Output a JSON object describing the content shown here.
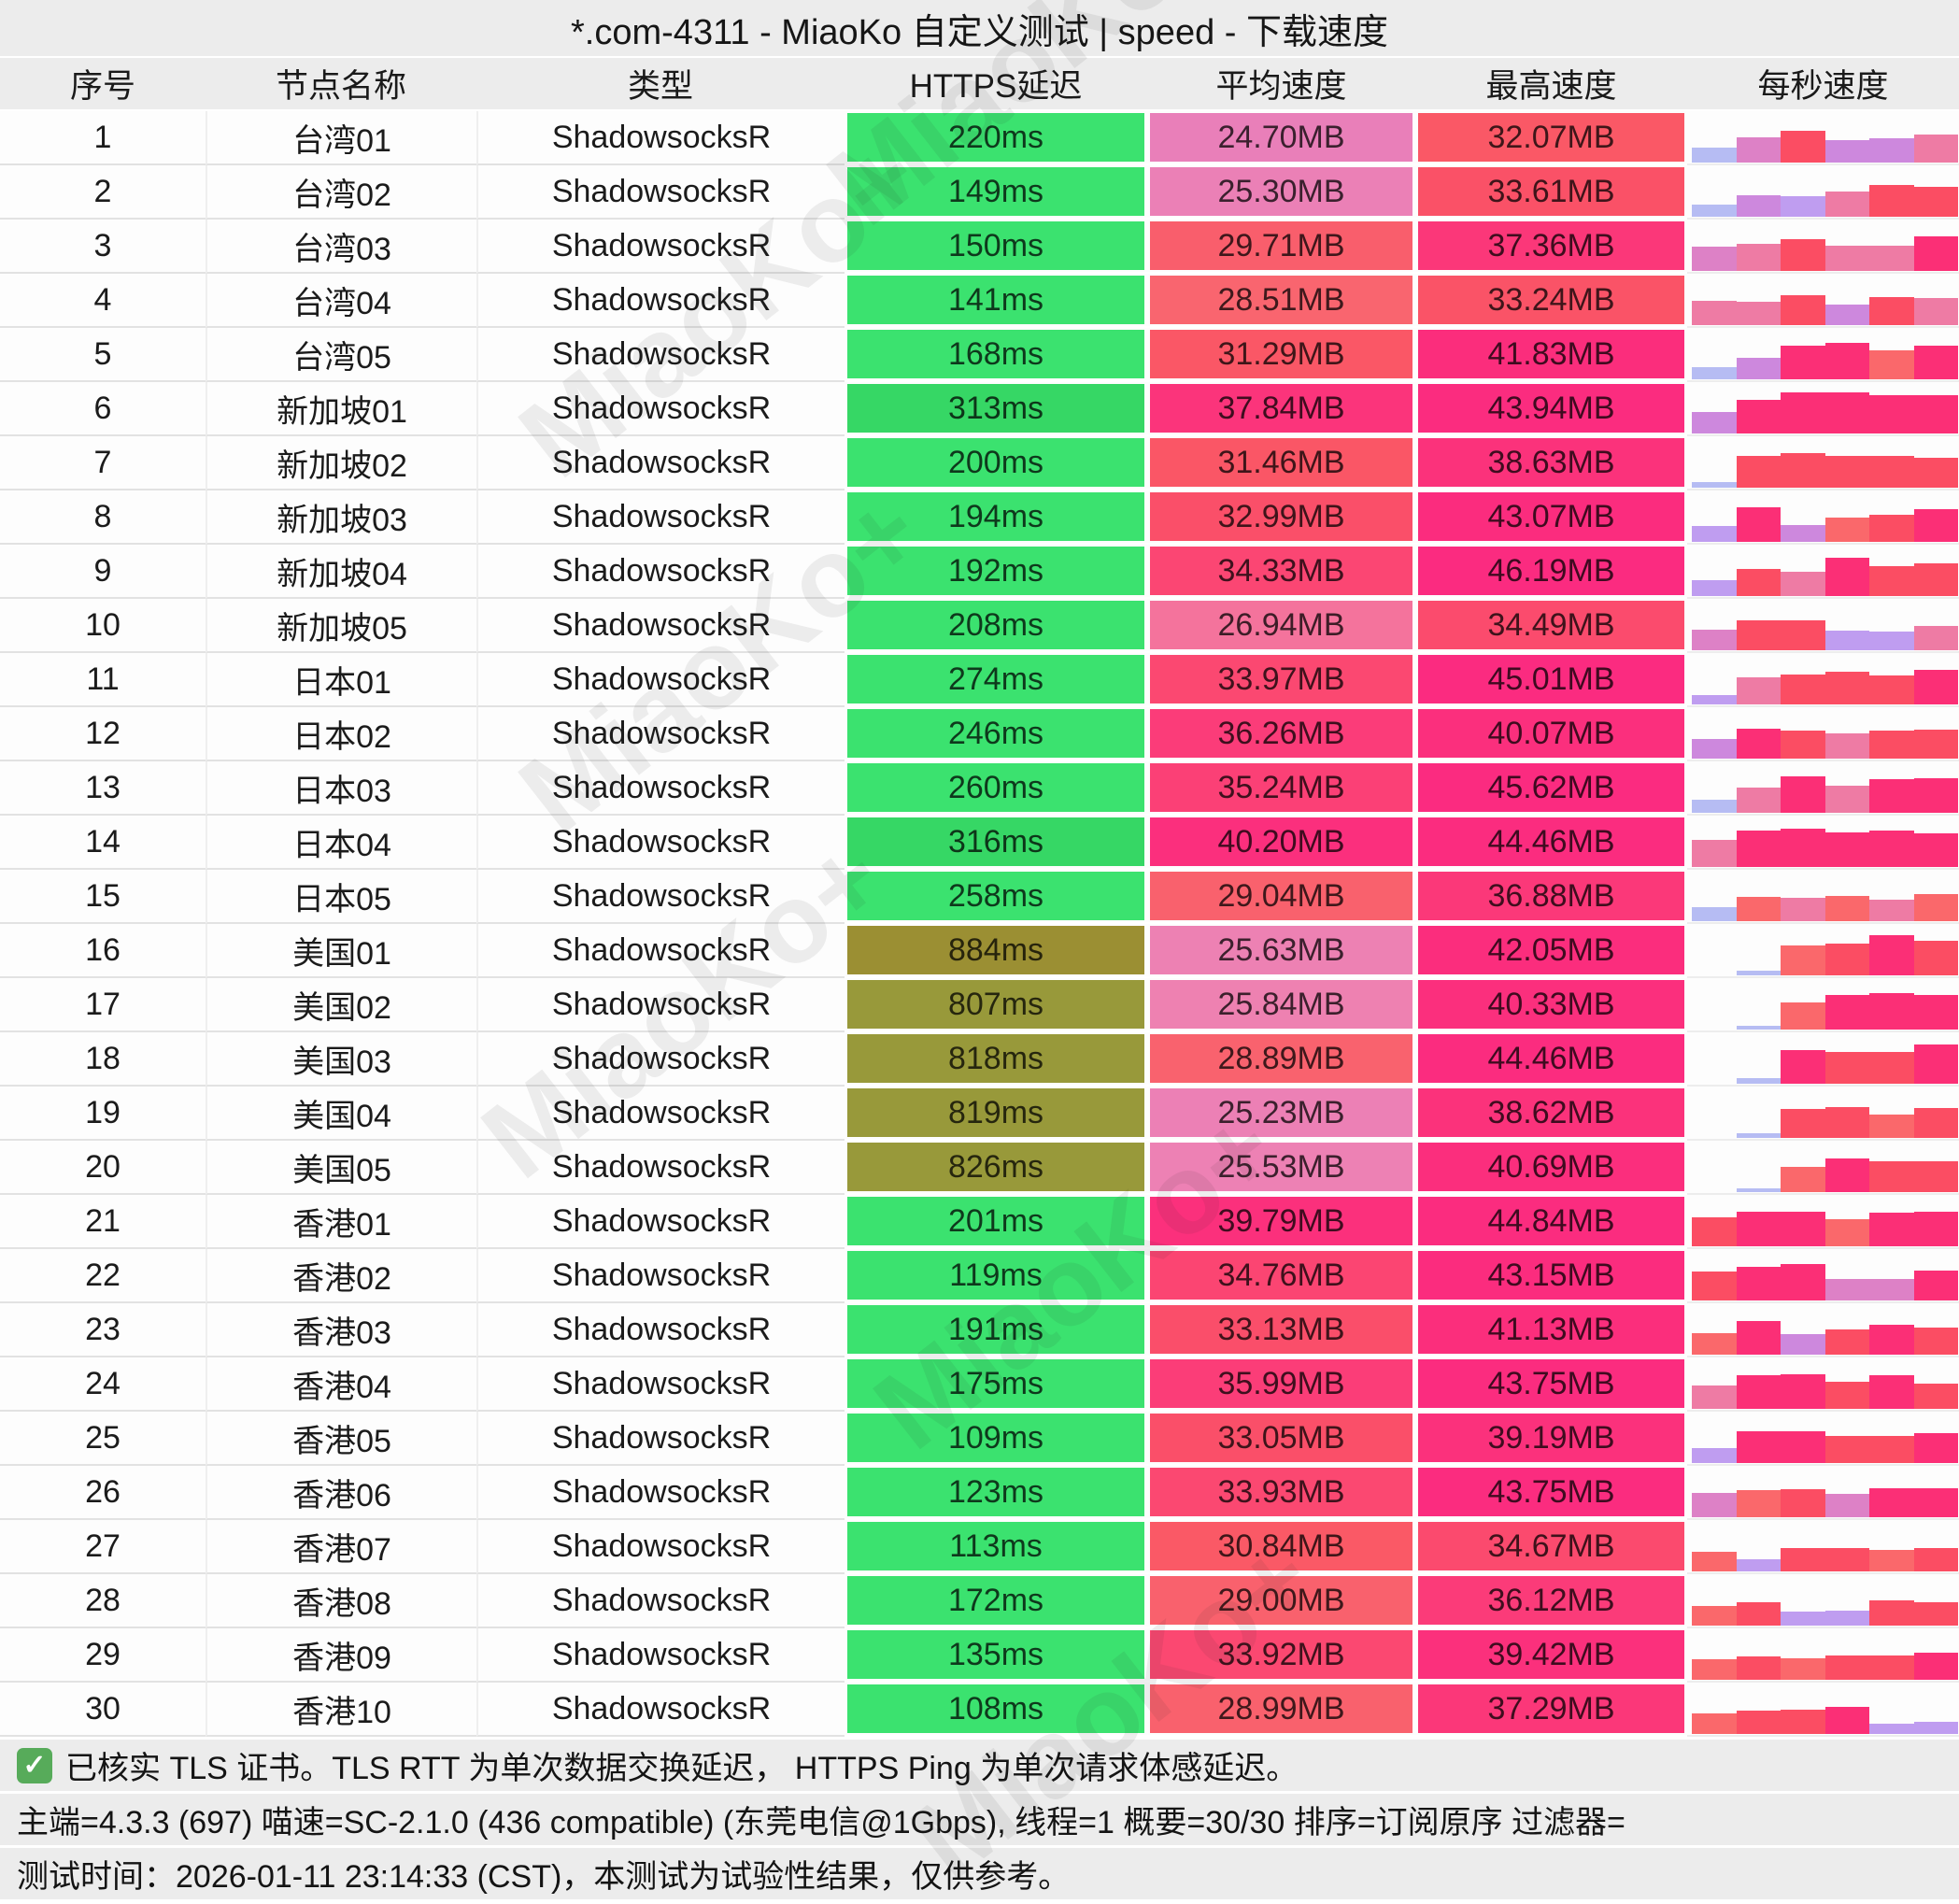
{
  "title": "*.com-4311 - MiaoKo 自定义测试 | speed - 下载速度",
  "watermark": "MiaoKo+",
  "columns": [
    "序号",
    "节点名称",
    "类型",
    "HTTPS延迟",
    "平均速度",
    "最高速度",
    "每秒速度"
  ],
  "rows": [
    {
      "no": "1",
      "name": "台湾01",
      "type": "ShadowsocksR",
      "lat": "220ms",
      "lat_bg": "#3be26f",
      "avg": "24.70MB",
      "avg_bg": "#e97fb9",
      "max": "32.07MB",
      "max_bg": "#fa5866",
      "bars": [
        [
          30,
          "#b6bcf3"
        ],
        [
          52,
          "#dd81c6"
        ],
        [
          66,
          "#fb4d63"
        ],
        [
          47,
          "#cd88dd"
        ],
        [
          50,
          "#cd88dd"
        ],
        [
          58,
          "#ee7ba4"
        ]
      ]
    },
    {
      "no": "2",
      "name": "台湾02",
      "type": "ShadowsocksR",
      "lat": "149ms",
      "lat_bg": "#3be26f",
      "avg": "25.30MB",
      "avg_bg": "#eb80b6",
      "max": "33.61MB",
      "max_bg": "#fa5167",
      "bars": [
        [
          25,
          "#b6bcf3"
        ],
        [
          45,
          "#cd88dd"
        ],
        [
          42,
          "#bf9df0"
        ],
        [
          52,
          "#ee7ba4"
        ],
        [
          65,
          "#fb4d63"
        ],
        [
          62,
          "#fb4d63"
        ]
      ]
    },
    {
      "no": "3",
      "name": "台湾03",
      "type": "ShadowsocksR",
      "lat": "150ms",
      "lat_bg": "#3be26f",
      "avg": "29.71MB",
      "avg_bg": "#f95e6c",
      "max": "37.36MB",
      "max_bg": "#fb3779",
      "bars": [
        [
          50,
          "#dd81c6"
        ],
        [
          55,
          "#ee7ba4"
        ],
        [
          66,
          "#fb4d63"
        ],
        [
          52,
          "#ee7ba4"
        ],
        [
          52,
          "#ee7ba4"
        ],
        [
          72,
          "#fb2f76"
        ]
      ]
    },
    {
      "no": "4",
      "name": "台湾04",
      "type": "ShadowsocksR",
      "lat": "141ms",
      "lat_bg": "#3be26f",
      "avg": "28.51MB",
      "avg_bg": "#f9656f",
      "max": "33.24MB",
      "max_bg": "#fa5367",
      "bars": [
        [
          50,
          "#ee7ba4"
        ],
        [
          48,
          "#ee7ba4"
        ],
        [
          62,
          "#fb4d63"
        ],
        [
          42,
          "#cd88dd"
        ],
        [
          58,
          "#fb4d63"
        ],
        [
          55,
          "#ee7ba4"
        ]
      ]
    },
    {
      "no": "5",
      "name": "台湾05",
      "type": "ShadowsocksR",
      "lat": "168ms",
      "lat_bg": "#3be26f",
      "avg": "31.29MB",
      "avg_bg": "#fa5766",
      "max": "41.83MB",
      "max_bg": "#fb2d7c",
      "bars": [
        [
          25,
          "#b6bcf3"
        ],
        [
          45,
          "#cd88dd"
        ],
        [
          70,
          "#fb2f76"
        ],
        [
          75,
          "#fb2f76"
        ],
        [
          60,
          "#fa686b"
        ],
        [
          70,
          "#fb2f76"
        ]
      ]
    },
    {
      "no": "6",
      "name": "新加坡01",
      "type": "ShadowsocksR",
      "lat": "313ms",
      "lat_bg": "#36d765",
      "avg": "37.84MB",
      "avg_bg": "#fb347b",
      "max": "43.94MB",
      "max_bg": "#fb2c7f",
      "bars": [
        [
          45,
          "#cd88dd"
        ],
        [
          70,
          "#fb2f76"
        ],
        [
          85,
          "#fb2f76"
        ],
        [
          85,
          "#fb2f76"
        ],
        [
          78,
          "#fb2f76"
        ],
        [
          78,
          "#fb2f76"
        ]
      ]
    },
    {
      "no": "7",
      "name": "新加坡02",
      "type": "ShadowsocksR",
      "lat": "200ms",
      "lat_bg": "#3be26f",
      "avg": "31.46MB",
      "avg_bg": "#fa5666",
      "max": "38.63MB",
      "max_bg": "#fb327b",
      "bars": [
        [
          12,
          "#b6bcf3"
        ],
        [
          65,
          "#fb4d63"
        ],
        [
          72,
          "#fb4d63"
        ],
        [
          65,
          "#fb4d63"
        ],
        [
          65,
          "#fb4d63"
        ],
        [
          62,
          "#fb4d63"
        ]
      ]
    },
    {
      "no": "8",
      "name": "新加坡03",
      "type": "ShadowsocksR",
      "lat": "194ms",
      "lat_bg": "#3be26f",
      "avg": "32.99MB",
      "avg_bg": "#fa4f69",
      "max": "43.07MB",
      "max_bg": "#fb2c7e",
      "bars": [
        [
          32,
          "#bf9df0"
        ],
        [
          72,
          "#fb2f76"
        ],
        [
          35,
          "#cd88dd"
        ],
        [
          50,
          "#fa686b"
        ],
        [
          55,
          "#fb4d63"
        ],
        [
          68,
          "#fb2f76"
        ]
      ]
    },
    {
      "no": "9",
      "name": "新加坡04",
      "type": "ShadowsocksR",
      "lat": "192ms",
      "lat_bg": "#3be26f",
      "avg": "34.33MB",
      "avg_bg": "#fb4673",
      "max": "46.19MB",
      "max_bg": "#fb2b80",
      "bars": [
        [
          32,
          "#bf9df0"
        ],
        [
          55,
          "#fb4d63"
        ],
        [
          50,
          "#ee7ba4"
        ],
        [
          78,
          "#fb2f76"
        ],
        [
          62,
          "#fb4d63"
        ],
        [
          68,
          "#fb4d63"
        ]
      ]
    },
    {
      "no": "10",
      "name": "新加坡05",
      "type": "ShadowsocksR",
      "lat": "208ms",
      "lat_bg": "#3be26f",
      "avg": "26.94MB",
      "avg_bg": "#f4739c",
      "max": "34.49MB",
      "max_bg": "#fb4b6d",
      "bars": [
        [
          42,
          "#dd81c6"
        ],
        [
          62,
          "#fb4d63"
        ],
        [
          62,
          "#fb4d63"
        ],
        [
          40,
          "#bf9df0"
        ],
        [
          38,
          "#bf9df0"
        ],
        [
          50,
          "#ee7ba4"
        ]
      ]
    },
    {
      "no": "11",
      "name": "日本01",
      "type": "ShadowsocksR",
      "lat": "274ms",
      "lat_bg": "#3be26f",
      "avg": "33.97MB",
      "avg_bg": "#fb4871",
      "max": "45.01MB",
      "max_bg": "#fb2b80",
      "bars": [
        [
          20,
          "#bf9df0"
        ],
        [
          55,
          "#ee7ba4"
        ],
        [
          62,
          "#fb4d63"
        ],
        [
          68,
          "#fb4d63"
        ],
        [
          60,
          "#fb4d63"
        ],
        [
          72,
          "#fb2f76"
        ]
      ]
    },
    {
      "no": "12",
      "name": "日本02",
      "type": "ShadowsocksR",
      "lat": "246ms",
      "lat_bg": "#3be26f",
      "avg": "36.26MB",
      "avg_bg": "#fb3c79",
      "max": "40.07MB",
      "max_bg": "#fb2f7d",
      "bars": [
        [
          40,
          "#cd88dd"
        ],
        [
          62,
          "#fb2f76"
        ],
        [
          58,
          "#fb4d63"
        ],
        [
          52,
          "#ee7ba4"
        ],
        [
          58,
          "#fb4d63"
        ],
        [
          60,
          "#fb4d63"
        ]
      ]
    },
    {
      "no": "13",
      "name": "日本03",
      "type": "ShadowsocksR",
      "lat": "260ms",
      "lat_bg": "#3be26f",
      "avg": "35.24MB",
      "avg_bg": "#fb4076",
      "max": "45.62MB",
      "max_bg": "#fb2b80",
      "bars": [
        [
          26,
          "#b6bcf3"
        ],
        [
          52,
          "#ee7ba4"
        ],
        [
          75,
          "#fb2f76"
        ],
        [
          55,
          "#ee7ba4"
        ],
        [
          70,
          "#fb2f76"
        ],
        [
          72,
          "#fb2f76"
        ]
      ]
    },
    {
      "no": "14",
      "name": "日本04",
      "type": "ShadowsocksR",
      "lat": "316ms",
      "lat_bg": "#36d765",
      "avg": "40.20MB",
      "avg_bg": "#fb2f7d",
      "max": "44.46MB",
      "max_bg": "#fb2c7f",
      "bars": [
        [
          55,
          "#ee7ba4"
        ],
        [
          75,
          "#fb2f76"
        ],
        [
          78,
          "#fb2f76"
        ],
        [
          72,
          "#fb2f76"
        ],
        [
          75,
          "#fb2f76"
        ],
        [
          70,
          "#fb2f76"
        ]
      ]
    },
    {
      "no": "15",
      "name": "日本05",
      "type": "ShadowsocksR",
      "lat": "258ms",
      "lat_bg": "#3be26f",
      "avg": "29.04MB",
      "avg_bg": "#f9616d",
      "max": "36.88MB",
      "max_bg": "#fb3879",
      "bars": [
        [
          28,
          "#b6bcf3"
        ],
        [
          50,
          "#fa686b"
        ],
        [
          48,
          "#ee7ba4"
        ],
        [
          52,
          "#fa686b"
        ],
        [
          45,
          "#ee7ba4"
        ],
        [
          55,
          "#fa686b"
        ]
      ]
    },
    {
      "no": "16",
      "name": "美国01",
      "type": "ShadowsocksR",
      "lat": "884ms",
      "lat_bg": "#9b8f33",
      "avg": "25.63MB",
      "avg_bg": "#ed81b3",
      "max": "42.05MB",
      "max_bg": "#fb2d7d",
      "bars": [
        [
          0,
          "none"
        ],
        [
          10,
          "#b6bcf3"
        ],
        [
          62,
          "#fa686b"
        ],
        [
          66,
          "#fb4d63"
        ],
        [
          82,
          "#fb2f76"
        ],
        [
          72,
          "#fb4d63"
        ]
      ]
    },
    {
      "no": "17",
      "name": "美国02",
      "type": "ShadowsocksR",
      "lat": "807ms",
      "lat_bg": "#98993a",
      "avg": "25.84MB",
      "avg_bg": "#ee81b1",
      "max": "40.33MB",
      "max_bg": "#fb2f7d",
      "bars": [
        [
          0,
          "none"
        ],
        [
          8,
          "#b6bcf3"
        ],
        [
          55,
          "#fa686b"
        ],
        [
          72,
          "#fb2f76"
        ],
        [
          75,
          "#fb2f76"
        ],
        [
          72,
          "#fb2f76"
        ]
      ]
    },
    {
      "no": "18",
      "name": "美国03",
      "type": "ShadowsocksR",
      "lat": "818ms",
      "lat_bg": "#98993a",
      "avg": "28.89MB",
      "avg_bg": "#f9626e",
      "max": "44.46MB",
      "max_bg": "#fb2c7f",
      "bars": [
        [
          0,
          "none"
        ],
        [
          12,
          "#b6bcf3"
        ],
        [
          70,
          "#fb2f76"
        ],
        [
          66,
          "#fb4d63"
        ],
        [
          66,
          "#fb4d63"
        ],
        [
          80,
          "#fb2f76"
        ]
      ]
    },
    {
      "no": "19",
      "name": "美国04",
      "type": "ShadowsocksR",
      "lat": "819ms",
      "lat_bg": "#98993a",
      "avg": "25.23MB",
      "avg_bg": "#ec80b5",
      "max": "38.62MB",
      "max_bg": "#fb327b",
      "bars": [
        [
          0,
          "none"
        ],
        [
          10,
          "#b6bcf3"
        ],
        [
          60,
          "#fb4d63"
        ],
        [
          64,
          "#fb4d63"
        ],
        [
          48,
          "#fa686b"
        ],
        [
          62,
          "#fb4d63"
        ]
      ]
    },
    {
      "no": "20",
      "name": "美国05",
      "type": "ShadowsocksR",
      "lat": "826ms",
      "lat_bg": "#98993a",
      "avg": "25.53MB",
      "avg_bg": "#ed81b4",
      "max": "40.69MB",
      "max_bg": "#fb2e7d",
      "bars": [
        [
          0,
          "none"
        ],
        [
          8,
          "#b6bcf3"
        ],
        [
          52,
          "#fa686b"
        ],
        [
          70,
          "#fb2f76"
        ],
        [
          64,
          "#fb4d63"
        ],
        [
          64,
          "#fb4d63"
        ]
      ]
    },
    {
      "no": "21",
      "name": "香港01",
      "type": "ShadowsocksR",
      "lat": "201ms",
      "lat_bg": "#3be26f",
      "avg": "39.79MB",
      "avg_bg": "#fb307c",
      "max": "44.84MB",
      "max_bg": "#fb2c7f",
      "bars": [
        [
          60,
          "#fb4d63"
        ],
        [
          72,
          "#fb2f76"
        ],
        [
          72,
          "#fb2f76"
        ],
        [
          55,
          "#fa686b"
        ],
        [
          70,
          "#fb2f76"
        ],
        [
          72,
          "#fb2f76"
        ]
      ]
    },
    {
      "no": "22",
      "name": "香港02",
      "type": "ShadowsocksR",
      "lat": "119ms",
      "lat_bg": "#3be26f",
      "avg": "34.76MB",
      "avg_bg": "#fb4572",
      "max": "43.15MB",
      "max_bg": "#fb2c7e",
      "bars": [
        [
          60,
          "#fb4d63"
        ],
        [
          70,
          "#fb2f76"
        ],
        [
          75,
          "#fb2f76"
        ],
        [
          45,
          "#dd81c6"
        ],
        [
          45,
          "#dd81c6"
        ],
        [
          62,
          "#fb2f76"
        ]
      ]
    },
    {
      "no": "23",
      "name": "香港03",
      "type": "ShadowsocksR",
      "lat": "191ms",
      "lat_bg": "#3be26f",
      "avg": "33.13MB",
      "avg_bg": "#fa4e6a",
      "max": "41.13MB",
      "max_bg": "#fb2e7c",
      "bars": [
        [
          45,
          "#fa686b"
        ],
        [
          70,
          "#fb2f76"
        ],
        [
          42,
          "#cd88dd"
        ],
        [
          52,
          "#fb4d63"
        ],
        [
          62,
          "#fb2f76"
        ],
        [
          55,
          "#fb4d63"
        ]
      ]
    },
    {
      "no": "24",
      "name": "香港04",
      "type": "ShadowsocksR",
      "lat": "175ms",
      "lat_bg": "#3be26f",
      "avg": "35.99MB",
      "avg_bg": "#fb3d78",
      "max": "43.75MB",
      "max_bg": "#fb2c7f",
      "bars": [
        [
          48,
          "#ee7ba4"
        ],
        [
          70,
          "#fb2f76"
        ],
        [
          72,
          "#fb2f76"
        ],
        [
          55,
          "#fb4d63"
        ],
        [
          70,
          "#fb2f76"
        ],
        [
          52,
          "#fb4d63"
        ]
      ]
    },
    {
      "no": "25",
      "name": "香港05",
      "type": "ShadowsocksR",
      "lat": "109ms",
      "lat_bg": "#3be26f",
      "avg": "33.05MB",
      "avg_bg": "#fa4f69",
      "max": "39.19MB",
      "max_bg": "#fb317c",
      "bars": [
        [
          30,
          "#bf9df0"
        ],
        [
          65,
          "#fb2f76"
        ],
        [
          65,
          "#fb2f76"
        ],
        [
          55,
          "#fb4d63"
        ],
        [
          55,
          "#fb4d63"
        ],
        [
          62,
          "#fb2f76"
        ]
      ]
    },
    {
      "no": "26",
      "name": "香港06",
      "type": "ShadowsocksR",
      "lat": "123ms",
      "lat_bg": "#3be26f",
      "avg": "33.93MB",
      "avg_bg": "#fb4871",
      "max": "43.75MB",
      "max_bg": "#fb2c7f",
      "bars": [
        [
          50,
          "#dd81c6"
        ],
        [
          55,
          "#fa686b"
        ],
        [
          58,
          "#fb4d63"
        ],
        [
          48,
          "#dd81c6"
        ],
        [
          60,
          "#fb2f76"
        ],
        [
          60,
          "#fb2f76"
        ]
      ]
    },
    {
      "no": "27",
      "name": "香港07",
      "type": "ShadowsocksR",
      "lat": "113ms",
      "lat_bg": "#3be26f",
      "avg": "30.84MB",
      "avg_bg": "#fa5966",
      "max": "34.67MB",
      "max_bg": "#fb4a6e",
      "bars": [
        [
          40,
          "#fa686b"
        ],
        [
          25,
          "#bf9df0"
        ],
        [
          48,
          "#fb4d63"
        ],
        [
          48,
          "#fb4d63"
        ],
        [
          45,
          "#fa686b"
        ],
        [
          48,
          "#fb4d63"
        ]
      ]
    },
    {
      "no": "28",
      "name": "香港08",
      "type": "ShadowsocksR",
      "lat": "172ms",
      "lat_bg": "#3be26f",
      "avg": "29.00MB",
      "avg_bg": "#f9616d",
      "max": "36.12MB",
      "max_bg": "#fb3b79",
      "bars": [
        [
          40,
          "#fa686b"
        ],
        [
          48,
          "#fb4d63"
        ],
        [
          28,
          "#bf9df0"
        ],
        [
          30,
          "#bf9df0"
        ],
        [
          52,
          "#fb4d63"
        ],
        [
          48,
          "#fb4d63"
        ]
      ]
    },
    {
      "no": "29",
      "name": "香港09",
      "type": "ShadowsocksR",
      "lat": "135ms",
      "lat_bg": "#3be26f",
      "avg": "33.92MB",
      "avg_bg": "#fb4871",
      "max": "39.42MB",
      "max_bg": "#fb307c",
      "bars": [
        [
          42,
          "#fa686b"
        ],
        [
          48,
          "#fb4d63"
        ],
        [
          45,
          "#fa686b"
        ],
        [
          50,
          "#fb4d63"
        ],
        [
          50,
          "#fb4d63"
        ],
        [
          55,
          "#fb2f76"
        ]
      ]
    },
    {
      "no": "30",
      "name": "香港10",
      "type": "ShadowsocksR",
      "lat": "108ms",
      "lat_bg": "#3be26f",
      "avg": "28.99MB",
      "avg_bg": "#f9616d",
      "max": "37.29MB",
      "max_bg": "#fb3779",
      "bars": [
        [
          42,
          "#fa686b"
        ],
        [
          48,
          "#fb4d63"
        ],
        [
          50,
          "#fb4d63"
        ],
        [
          55,
          "#fb2f76"
        ],
        [
          22,
          "#bf9df0"
        ],
        [
          25,
          "#bf9df0"
        ]
      ]
    }
  ],
  "footer": {
    "check_glyph": "✓",
    "line1": "已核实 TLS 证书。TLS RTT 为单次数据交换延迟， HTTPS Ping 为单次请求体感延迟。",
    "line2": "主端=4.3.3 (697) 喵速=SC-2.1.0 (436 compatible) (东莞电信@1Gbps), 线程=1 概要=30/30 排序=订阅原序 过滤器=",
    "line3": "测试时间：2026-01-11 23:14:33 (CST)，本测试为试验性结果，仅供参考。"
  },
  "status_colors": {
    "latency_good": "#3be26f",
    "latency_mid": "#36d765",
    "latency_high": "#98993a",
    "speed_slow": "#b6bcf3",
    "speed_fast": "#fb2f76"
  }
}
